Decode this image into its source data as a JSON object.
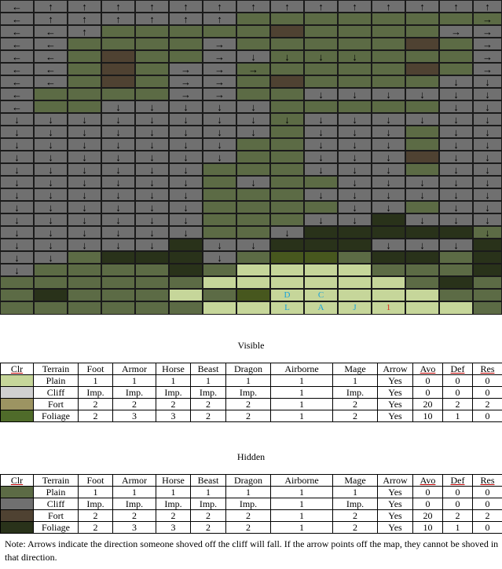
{
  "map": {
    "palette": {
      "G": "#707070",
      "P": "#5c6b45",
      "F": "#4f4232",
      "D": "#29321a",
      "O": "#47571e",
      "L": "#c6d69a"
    },
    "rows": [
      [
        "G",
        "G",
        "G",
        "G",
        "G",
        "G",
        "G",
        "G",
        "G",
        "G",
        "G",
        "G",
        "G",
        "G",
        "G"
      ],
      [
        "G",
        "G",
        "G",
        "G",
        "G",
        "G",
        "G",
        "P",
        "P",
        "P",
        "P",
        "P",
        "P",
        "P",
        "P"
      ],
      [
        "G",
        "G",
        "G",
        "P",
        "P",
        "P",
        "P",
        "P",
        "F",
        "P",
        "P",
        "P",
        "P",
        "G",
        "G"
      ],
      [
        "G",
        "G",
        "P",
        "P",
        "P",
        "P",
        "G",
        "P",
        "P",
        "P",
        "P",
        "P",
        "F",
        "P",
        "G"
      ],
      [
        "G",
        "G",
        "P",
        "F",
        "P",
        "P",
        "G",
        "G",
        "P",
        "P",
        "P",
        "P",
        "P",
        "P",
        "G"
      ],
      [
        "G",
        "G",
        "P",
        "F",
        "P",
        "G",
        "G",
        "P",
        "P",
        "P",
        "P",
        "P",
        "F",
        "P",
        "G"
      ],
      [
        "G",
        "G",
        "P",
        "F",
        "P",
        "G",
        "G",
        "P",
        "F",
        "P",
        "P",
        "P",
        "P",
        "G",
        "G"
      ],
      [
        "G",
        "P",
        "P",
        "P",
        "P",
        "G",
        "G",
        "P",
        "P",
        "G",
        "G",
        "G",
        "G",
        "G",
        "G"
      ],
      [
        "G",
        "P",
        "P",
        "G",
        "G",
        "G",
        "G",
        "G",
        "P",
        "P",
        "P",
        "P",
        "P",
        "G",
        "G"
      ],
      [
        "G",
        "G",
        "G",
        "G",
        "G",
        "G",
        "G",
        "G",
        "P",
        "G",
        "G",
        "G",
        "G",
        "G",
        "G"
      ],
      [
        "G",
        "G",
        "G",
        "G",
        "G",
        "G",
        "G",
        "G",
        "P",
        "G",
        "G",
        "G",
        "P",
        "G",
        "G"
      ],
      [
        "G",
        "G",
        "G",
        "G",
        "G",
        "G",
        "G",
        "P",
        "P",
        "G",
        "G",
        "G",
        "P",
        "G",
        "G"
      ],
      [
        "G",
        "G",
        "G",
        "G",
        "G",
        "G",
        "G",
        "P",
        "P",
        "G",
        "G",
        "G",
        "F",
        "G",
        "G"
      ],
      [
        "G",
        "G",
        "G",
        "G",
        "G",
        "G",
        "P",
        "P",
        "P",
        "G",
        "G",
        "G",
        "P",
        "G",
        "G"
      ],
      [
        "G",
        "G",
        "G",
        "G",
        "G",
        "G",
        "P",
        "G",
        "P",
        "P",
        "G",
        "G",
        "G",
        "G",
        "G"
      ],
      [
        "G",
        "G",
        "G",
        "G",
        "G",
        "G",
        "P",
        "P",
        "P",
        "G",
        "G",
        "G",
        "G",
        "G",
        "G"
      ],
      [
        "G",
        "G",
        "G",
        "G",
        "G",
        "G",
        "P",
        "P",
        "P",
        "P",
        "G",
        "G",
        "P",
        "G",
        "G"
      ],
      [
        "G",
        "G",
        "G",
        "G",
        "G",
        "G",
        "P",
        "P",
        "P",
        "G",
        "G",
        "D",
        "G",
        "G",
        "G"
      ],
      [
        "G",
        "G",
        "G",
        "G",
        "G",
        "G",
        "P",
        "P",
        "G",
        "D",
        "D",
        "D",
        "D",
        "D",
        "P"
      ],
      [
        "G",
        "G",
        "G",
        "G",
        "G",
        "D",
        "G",
        "G",
        "D",
        "D",
        "D",
        "G",
        "G",
        "G",
        "D"
      ],
      [
        "G",
        "G",
        "P",
        "D",
        "D",
        "D",
        "G",
        "P",
        "O",
        "O",
        "P",
        "D",
        "D",
        "P",
        "D"
      ],
      [
        "G",
        "P",
        "P",
        "P",
        "P",
        "D",
        "P",
        "L",
        "L",
        "L",
        "L",
        "P",
        "P",
        "P",
        "D"
      ],
      [
        "P",
        "P",
        "P",
        "P",
        "P",
        "P",
        "L",
        "L",
        "L",
        "L",
        "L",
        "L",
        "P",
        "D",
        "P"
      ],
      [
        "P",
        "D",
        "P",
        "P",
        "P",
        "L",
        "P",
        "O",
        "L",
        "L",
        "L",
        "L",
        "L",
        "P",
        "P"
      ],
      [
        "P",
        "P",
        "P",
        "P",
        "P",
        "P",
        "L",
        "L",
        "L",
        "L",
        "L",
        "L",
        "L",
        "L",
        "P"
      ]
    ],
    "arrows": [
      [
        "←",
        "↑",
        "↑",
        "↑",
        "↑",
        "↑",
        "↑",
        "↑",
        "↑",
        "↑",
        "↑",
        "↑",
        "↑",
        "↑",
        "↑"
      ],
      [
        "←",
        "↑",
        "↑",
        "↑",
        "↑",
        "↑",
        "↑",
        "",
        "",
        "",
        "",
        "",
        "",
        "",
        "→"
      ],
      [
        "←",
        "←",
        "↑",
        "",
        "",
        "",
        "",
        "",
        "",
        "",
        "",
        "",
        "",
        "→",
        "→"
      ],
      [
        "←",
        "←",
        "",
        "",
        "",
        "",
        "→",
        "",
        "",
        "",
        "",
        "",
        "",
        "",
        "→"
      ],
      [
        "←",
        "←",
        "",
        "",
        "",
        "",
        "→",
        "↓",
        "↓",
        "↓",
        "↓",
        "",
        "",
        "",
        "→"
      ],
      [
        "←",
        "←",
        "",
        "",
        "",
        "→",
        "→",
        "→",
        "",
        "",
        "",
        "",
        "",
        "",
        "→"
      ],
      [
        "←",
        "←",
        "",
        "",
        "",
        "→",
        "→",
        "",
        "",
        "",
        "",
        "",
        "",
        "↓",
        "↓"
      ],
      [
        "←",
        "",
        "",
        "",
        "",
        "→",
        "→",
        "",
        "",
        "↓",
        "↓",
        "↓",
        "↓",
        "↓",
        "↓"
      ],
      [
        "←",
        "",
        "",
        "↓",
        "↓",
        "↓",
        "↓",
        "↓",
        "",
        "",
        "",
        "",
        "",
        "↓",
        "↓"
      ],
      [
        "↓",
        "↓",
        "↓",
        "↓",
        "↓",
        "↓",
        "↓",
        "↓",
        "↓",
        "↓",
        "↓",
        "↓",
        "↓",
        "↓",
        "↓"
      ],
      [
        "↓",
        "↓",
        "↓",
        "↓",
        "↓",
        "↓",
        "↓",
        "↓",
        "",
        "↓",
        "↓",
        "↓",
        "",
        "↓",
        "↓"
      ],
      [
        "↓",
        "↓",
        "↓",
        "↓",
        "↓",
        "↓",
        "↓",
        "",
        "",
        "↓",
        "↓",
        "↓",
        "",
        "↓",
        "↓"
      ],
      [
        "↓",
        "↓",
        "↓",
        "↓",
        "↓",
        "↓",
        "↓",
        "",
        "",
        "↓",
        "↓",
        "↓",
        "",
        "↓",
        "↓"
      ],
      [
        "↓",
        "↓",
        "↓",
        "↓",
        "↓",
        "↓",
        "",
        "",
        "",
        "↓",
        "↓",
        "↓",
        "",
        "↓",
        "↓"
      ],
      [
        "↓",
        "↓",
        "↓",
        "↓",
        "↓",
        "↓",
        "",
        "↓",
        "",
        "",
        "↓",
        "↓",
        "↓",
        "↓",
        "↓"
      ],
      [
        "↓",
        "↓",
        "↓",
        "↓",
        "↓",
        "↓",
        "",
        "",
        "",
        "↓",
        "↓",
        "↓",
        "↓",
        "↓",
        "↓"
      ],
      [
        "↓",
        "↓",
        "↓",
        "↓",
        "↓",
        "↓",
        "",
        "",
        "",
        "",
        "↓",
        "↓",
        "",
        "↓",
        "↓"
      ],
      [
        "↓",
        "↓",
        "↓",
        "↓",
        "↓",
        "↓",
        "",
        "",
        "",
        "↓",
        "↓",
        "",
        "↓",
        "↓",
        "↓"
      ],
      [
        "↓",
        "↓",
        "↓",
        "↓",
        "↓",
        "↓",
        "",
        "",
        "↓",
        "",
        "",
        "",
        "",
        "",
        "↓"
      ],
      [
        "↓",
        "↓",
        "↓",
        "↓",
        "↓",
        "",
        "↓",
        "↓",
        "",
        "",
        "",
        "↓",
        "↓",
        "↓",
        ""
      ],
      [
        "↓",
        "↓",
        "",
        "",
        "",
        "",
        "↓",
        "",
        "",
        "",
        "",
        "",
        "",
        "",
        ""
      ],
      [
        "↓",
        "",
        "",
        "",
        "",
        "",
        "",
        "",
        "",
        "",
        "",
        "",
        "",
        "",
        ""
      ],
      [
        "",
        "",
        "",
        "",
        "",
        "",
        "",
        "",
        "",
        "",
        "",
        "",
        "",
        "",
        ""
      ],
      [
        "",
        "",
        "",
        "",
        "",
        "",
        "",
        "",
        "",
        "",
        "",
        "",
        "",
        "",
        ""
      ],
      [
        "",
        "",
        "",
        "",
        "",
        "",
        "",
        "",
        "",
        "",
        "",
        "",
        "",
        "",
        ""
      ]
    ],
    "markers": [
      {
        "row": 23,
        "col": 8,
        "text": "D",
        "color": "#1aa3d9"
      },
      {
        "row": 23,
        "col": 9,
        "text": "C",
        "color": "#1aa3d9"
      },
      {
        "row": 24,
        "col": 8,
        "text": "L",
        "color": "#1aa3d9"
      },
      {
        "row": 24,
        "col": 9,
        "text": "A",
        "color": "#1aa3d9"
      },
      {
        "row": 24,
        "col": 10,
        "text": "J",
        "color": "#1aa3d9"
      },
      {
        "row": 24,
        "col": 11,
        "text": "1",
        "color": "#d9261a"
      }
    ]
  },
  "visible": {
    "title": "Visible",
    "headers": [
      "Clr",
      "Terrain",
      "Foot",
      "Armor",
      "Horse",
      "Beast",
      "Dragon",
      "Airborne",
      "Mage",
      "Arrow",
      "Avo",
      "Def",
      "Res"
    ],
    "rows": [
      {
        "color": "#c6d69a",
        "cells": [
          "Plain",
          "1",
          "1",
          "1",
          "1",
          "1",
          "1",
          "1",
          "Yes",
          "0",
          "0",
          "0"
        ]
      },
      {
        "color": "#d0d0d0",
        "cells": [
          "Cliff",
          "Imp.",
          "Imp.",
          "Imp.",
          "Imp.",
          "Imp.",
          "1",
          "Imp.",
          "Yes",
          "0",
          "0",
          "0"
        ]
      },
      {
        "color": "#9c9462",
        "cells": [
          "Fort",
          "2",
          "2",
          "2",
          "2",
          "2",
          "1",
          "2",
          "Yes",
          "20",
          "2",
          "2"
        ]
      },
      {
        "color": "#4f6b2a",
        "cells": [
          "Foliage",
          "2",
          "3",
          "3",
          "2",
          "2",
          "1",
          "2",
          "Yes",
          "10",
          "1",
          "0"
        ]
      }
    ]
  },
  "hidden": {
    "title": "Hidden",
    "headers": [
      "Clr",
      "Terrain",
      "Foot",
      "Armor",
      "Horse",
      "Beast",
      "Dragon",
      "Airborne",
      "Mage",
      "Arrow",
      "Avo",
      "Def",
      "Res"
    ],
    "rows": [
      {
        "color": "#5c6b45",
        "cells": [
          "Plain",
          "1",
          "1",
          "1",
          "1",
          "1",
          "1",
          "1",
          "Yes",
          "0",
          "0",
          "0"
        ]
      },
      {
        "color": "#707070",
        "cells": [
          "Cliff",
          "Imp.",
          "Imp.",
          "Imp.",
          "Imp.",
          "Imp.",
          "1",
          "Imp.",
          "Yes",
          "0",
          "0",
          "0"
        ]
      },
      {
        "color": "#4f4232",
        "cells": [
          "Fort",
          "2",
          "2",
          "2",
          "2",
          "2",
          "1",
          "2",
          "Yes",
          "20",
          "2",
          "2"
        ]
      },
      {
        "color": "#29321a",
        "cells": [
          "Foliage",
          "2",
          "3",
          "3",
          "2",
          "2",
          "1",
          "2",
          "Yes",
          "10",
          "1",
          "0"
        ]
      }
    ]
  },
  "note": "Note: Arrows indicate the direction someone shoved off the cliff will fall. If the arrow points off the map, they cannot be shoved in that direction."
}
